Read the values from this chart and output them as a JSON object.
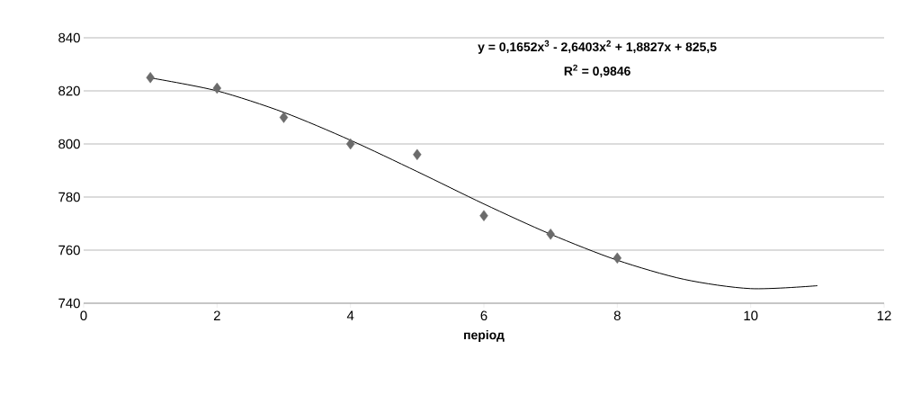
{
  "chart_data": {
    "type": "scatter",
    "xlabel": "період",
    "xlim": [
      0,
      12
    ],
    "xticks": [
      0,
      2,
      4,
      6,
      8,
      10,
      12
    ],
    "ylim": [
      740,
      840
    ],
    "yticks": [
      740,
      760,
      780,
      800,
      820,
      840
    ],
    "grid": "y",
    "annotations": [
      "y = 0,1652x$^{3}$ - 2,6403x$^{2}$ + 1,8827x + 825,5",
      "R$^{2}$ = 0,9846"
    ],
    "series": [
      {
        "color": "#6b6b6b",
        "marker": "diamond",
        "x": [
          1,
          2,
          3,
          4,
          5,
          6,
          7,
          8
        ],
        "values": [
          825,
          821,
          810,
          800,
          796,
          773,
          766,
          757
        ]
      },
      {
        "type": "line",
        "marker": "none",
        "color": "#000000",
        "x": [
          1,
          2,
          3,
          4,
          5,
          6,
          7,
          8,
          9,
          10,
          11
        ],
        "values": [
          824.9,
          820.0,
          811.9,
          801.4,
          789.6,
          777.4,
          766.0,
          756.2,
          749.0,
          745.5,
          746.6
        ]
      }
    ]
  }
}
